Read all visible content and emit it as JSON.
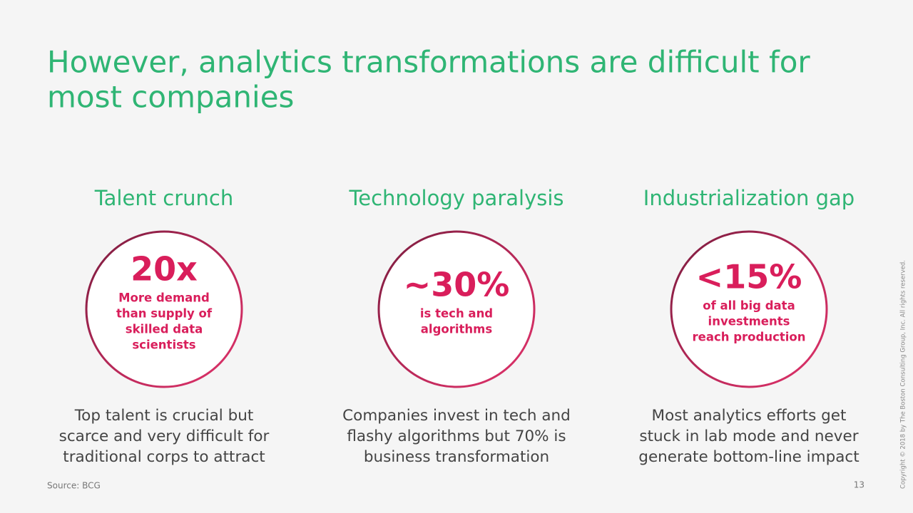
{
  "header": {
    "title": [
      "However, analytics transformations are difficult for",
      "most companies"
    ]
  },
  "columns": [
    {
      "heading": "Talent crunch",
      "stat": "20x",
      "stat_caption": [
        "More demand",
        "than supply of",
        "skilled data",
        "scientists"
      ],
      "description": [
        "Top talent is crucial but",
        "scarce and very difficult for",
        "traditional corps to attract"
      ]
    },
    {
      "heading": "Technology paralysis",
      "stat": "~30%",
      "stat_caption": [
        "is tech and",
        "algorithms"
      ],
      "description": [
        "Companies invest in tech and",
        "flashy algorithms but 70% is",
        "business transformation"
      ]
    },
    {
      "heading": "Industrialization gap",
      "stat": "<15%",
      "stat_caption": [
        "of all big data",
        "investments",
        "reach production"
      ],
      "description": [
        "Most analytics efforts get",
        "stuck in lab mode and never",
        "generate bottom-line impact"
      ]
    }
  ],
  "footer": {
    "source": "Source: BCG",
    "page_number": "13",
    "copyright": "Copyright © 2018 by The Boston Consulting Group, Inc. All rights reserved."
  }
}
